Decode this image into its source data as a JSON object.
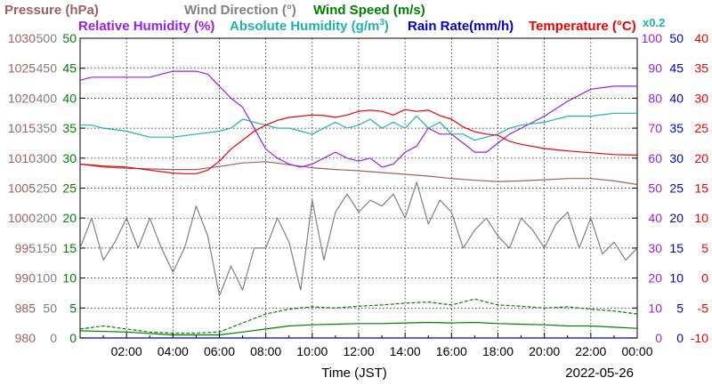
{
  "chart_data": {
    "type": "line",
    "date": "2022-05-26",
    "xlabel": "Time (JST)",
    "x_ticks": [
      "02:00",
      "04:00",
      "06:00",
      "08:00",
      "10:00",
      "12:00",
      "14:00",
      "16:00",
      "18:00",
      "20:00",
      "22:00",
      "00:00"
    ],
    "x_range_hours": [
      0,
      24
    ],
    "grid": true,
    "legend": [
      {
        "label": "Pressure (hPa)",
        "color": "#a06060"
      },
      {
        "label": "Wind Direction (°)",
        "color": "#808080"
      },
      {
        "label": "Wind Speed (m/s)",
        "color": "#008000"
      },
      {
        "label": "Relative Humidity (%)",
        "color": "#9a1ee6"
      },
      {
        "label": "Absolute Humidity (g/m",
        "sup": "3",
        "suffix": ")",
        "color": "#20b0b0"
      },
      {
        "label": "Rain Rate(mm/h)",
        "color": "#0000cc"
      },
      {
        "label": "Temperature (°C)",
        "color": "#ee0000"
      },
      {
        "label": "x0.2",
        "color": "#20b0b0"
      }
    ],
    "axes": {
      "pressure": {
        "color": "#a06060",
        "range": [
          980,
          1030
        ],
        "ticks": [
          "1030",
          "1025",
          "1020",
          "1015",
          "1010",
          "1005",
          "1000",
          "995",
          "990",
          "985",
          "980"
        ]
      },
      "wind_direction": {
        "color": "#808080",
        "range": [
          0,
          500
        ],
        "ticks": [
          "500",
          "450",
          "400",
          "350",
          "300",
          "250",
          "200",
          "150",
          "100",
          "50",
          "0"
        ]
      },
      "wind_speed": {
        "color": "#008000",
        "range": [
          0,
          50
        ],
        "ticks": [
          "50",
          "45",
          "40",
          "35",
          "30",
          "25",
          "20",
          "15",
          "10",
          "5",
          "0"
        ]
      },
      "humidity": {
        "color": "#9a1ee6",
        "range": [
          0,
          100
        ],
        "ticks": [
          "100",
          "90",
          "80",
          "70",
          "60",
          "50",
          "40",
          "30",
          "20",
          "10",
          "0"
        ]
      },
      "rain_rate": {
        "color": "#0000cc",
        "range": [
          0,
          50
        ],
        "ticks": [
          "50",
          "45",
          "40",
          "35",
          "30",
          "25",
          "20",
          "15",
          "10",
          "5",
          "0"
        ]
      },
      "temperature": {
        "color": "#ee0000",
        "range": [
          -10,
          40
        ],
        "ticks": [
          "40",
          "35",
          "30",
          "25",
          "20",
          "15",
          "10",
          "5",
          "0",
          "-5",
          "-10"
        ]
      }
    },
    "series": [
      {
        "name": "Pressure (hPa)",
        "axis": "pressure",
        "color": "#a06060",
        "x": [
          0,
          1,
          2,
          3,
          4,
          5,
          6,
          7,
          8,
          9,
          10,
          11,
          12,
          13,
          14,
          15,
          16,
          17,
          18,
          19,
          20,
          21,
          22,
          23,
          24
        ],
        "y": [
          1009,
          1008.5,
          1008.3,
          1008.2,
          1008.1,
          1008.1,
          1008.6,
          1009.2,
          1009.4,
          1008.9,
          1008.4,
          1008.1,
          1007.9,
          1007.6,
          1007.3,
          1007.0,
          1006.6,
          1006.3,
          1006.1,
          1006.2,
          1006.4,
          1006.6,
          1006.6,
          1006.2,
          1005.6
        ]
      },
      {
        "name": "Wind Direction (°)",
        "axis": "wind_direction",
        "color": "#808080",
        "x": [
          0,
          0.5,
          1,
          1.5,
          2,
          2.5,
          3,
          3.5,
          4,
          4.5,
          5,
          5.5,
          6,
          6.5,
          7,
          7.5,
          8,
          8.5,
          9,
          9.5,
          10,
          10.5,
          11,
          11.5,
          12,
          12.5,
          13,
          13.5,
          14,
          14.5,
          15,
          15.5,
          16,
          16.5,
          17,
          17.5,
          18,
          18.5,
          19,
          19.5,
          20,
          20.5,
          21,
          21.5,
          22,
          22.5,
          23,
          23.5,
          24
        ],
        "y": [
          150,
          200,
          130,
          160,
          200,
          150,
          200,
          150,
          110,
          150,
          220,
          170,
          70,
          120,
          80,
          150,
          150,
          200,
          160,
          80,
          230,
          130,
          210,
          240,
          210,
          230,
          220,
          240,
          200,
          260,
          190,
          230,
          210,
          150,
          180,
          200,
          170,
          150,
          200,
          180,
          150,
          190,
          210,
          150,
          200,
          140,
          160,
          130,
          150
        ]
      },
      {
        "name": "Wind Speed (m/s)",
        "axis": "wind_speed",
        "color": "#008000",
        "style": "solid",
        "x": [
          0,
          2,
          4,
          6,
          7,
          8,
          9,
          10,
          11,
          12,
          13,
          14,
          15,
          16,
          17,
          18,
          19,
          20,
          21,
          22,
          23,
          24
        ],
        "y": [
          1.2,
          1.0,
          0.5,
          0.5,
          1.0,
          1.5,
          2.0,
          2.2,
          2.3,
          2.4,
          2.4,
          2.5,
          2.6,
          2.5,
          2.6,
          2.4,
          2.3,
          2.2,
          2.0,
          2.0,
          1.8,
          1.6
        ]
      },
      {
        "name": "Wind Speed gust (m/s)",
        "axis": "wind_speed",
        "color": "#008000",
        "style": "dashed",
        "x": [
          0,
          1,
          2,
          3,
          4,
          5,
          6,
          7,
          8,
          9,
          10,
          11,
          12,
          13,
          14,
          15,
          16,
          17,
          18,
          19,
          20,
          21,
          22,
          23,
          24
        ],
        "y": [
          1.5,
          2.0,
          1.5,
          1.0,
          0.8,
          0.8,
          1.0,
          2.5,
          4.0,
          4.8,
          5.2,
          5.0,
          5.3,
          5.5,
          5.8,
          6.0,
          5.5,
          6.5,
          5.5,
          5.3,
          5.0,
          5.2,
          4.8,
          4.5,
          4.0
        ]
      },
      {
        "name": "Relative Humidity (%)",
        "axis": "humidity",
        "color": "#9a1ee6",
        "x": [
          0,
          0.5,
          1,
          2,
          3,
          3.5,
          4,
          5,
          5.5,
          6,
          6.5,
          7,
          7.5,
          8,
          8.5,
          9,
          9.5,
          10,
          10.5,
          11,
          11.5,
          12,
          12.5,
          13,
          13.5,
          14,
          14.5,
          15,
          15.5,
          16,
          16.5,
          17,
          17.5,
          18,
          18.5,
          19,
          20,
          21,
          22,
          23,
          24
        ],
        "y": [
          86,
          87,
          87,
          87,
          87,
          88,
          89,
          89,
          88,
          84,
          80,
          77,
          70,
          63,
          60,
          58,
          57,
          58,
          60,
          62,
          60,
          59,
          60,
          57,
          58,
          62,
          64,
          70,
          68,
          68,
          65,
          62,
          62,
          65,
          68,
          70,
          74,
          79,
          83,
          84,
          84
        ]
      },
      {
        "name": "Absolute Humidity (g/m3)",
        "axis": "humidity",
        "color": "#20b0b0",
        "x": [
          0,
          0.5,
          1,
          2,
          3,
          4,
          5,
          6,
          6.5,
          7,
          7.5,
          8,
          8.5,
          9,
          9.5,
          10,
          10.5,
          11,
          11.5,
          12,
          12.5,
          13,
          13.5,
          14,
          14.5,
          15,
          15.5,
          16,
          16.5,
          17,
          17.5,
          18,
          18.5,
          19,
          20,
          21,
          22,
          23,
          24
        ],
        "y": [
          71,
          71,
          70,
          69,
          67,
          67,
          68,
          69,
          70,
          73,
          72,
          71,
          70,
          70,
          69,
          68,
          70,
          72,
          70,
          71,
          73,
          70,
          72,
          70,
          74,
          70,
          72,
          68,
          68,
          66,
          67,
          68,
          70,
          71,
          72,
          74,
          74,
          75,
          75
        ]
      },
      {
        "name": "Rain Rate(mm/h)",
        "axis": "rain_rate",
        "color": "#0000cc",
        "x": [
          0,
          24
        ],
        "y": [
          0,
          0
        ]
      },
      {
        "name": "Temperature (°C)",
        "axis": "temperature",
        "color": "#ee0000",
        "x": [
          0,
          1,
          2,
          3,
          4,
          4.5,
          5,
          5.5,
          6,
          6.5,
          7,
          7.5,
          8,
          8.5,
          9,
          9.5,
          10,
          10.5,
          11,
          11.5,
          12,
          12.5,
          13,
          13.5,
          14,
          14.5,
          15,
          15.5,
          16,
          16.5,
          17,
          17.5,
          18,
          18.5,
          19,
          20,
          21,
          22,
          23,
          24
        ],
        "y": [
          19,
          18.7,
          18.5,
          18,
          17.5,
          17.4,
          17.4,
          18,
          19.5,
          21.5,
          23,
          24.5,
          25.5,
          26.3,
          26.8,
          27,
          27.2,
          27.1,
          26.8,
          27.2,
          27.8,
          28,
          27.8,
          27.2,
          28.1,
          27.8,
          28,
          27.1,
          26.5,
          25.2,
          24.4,
          24,
          23.8,
          22.8,
          22.3,
          21.6,
          21.2,
          20.9,
          20.6,
          20.5
        ]
      }
    ]
  }
}
